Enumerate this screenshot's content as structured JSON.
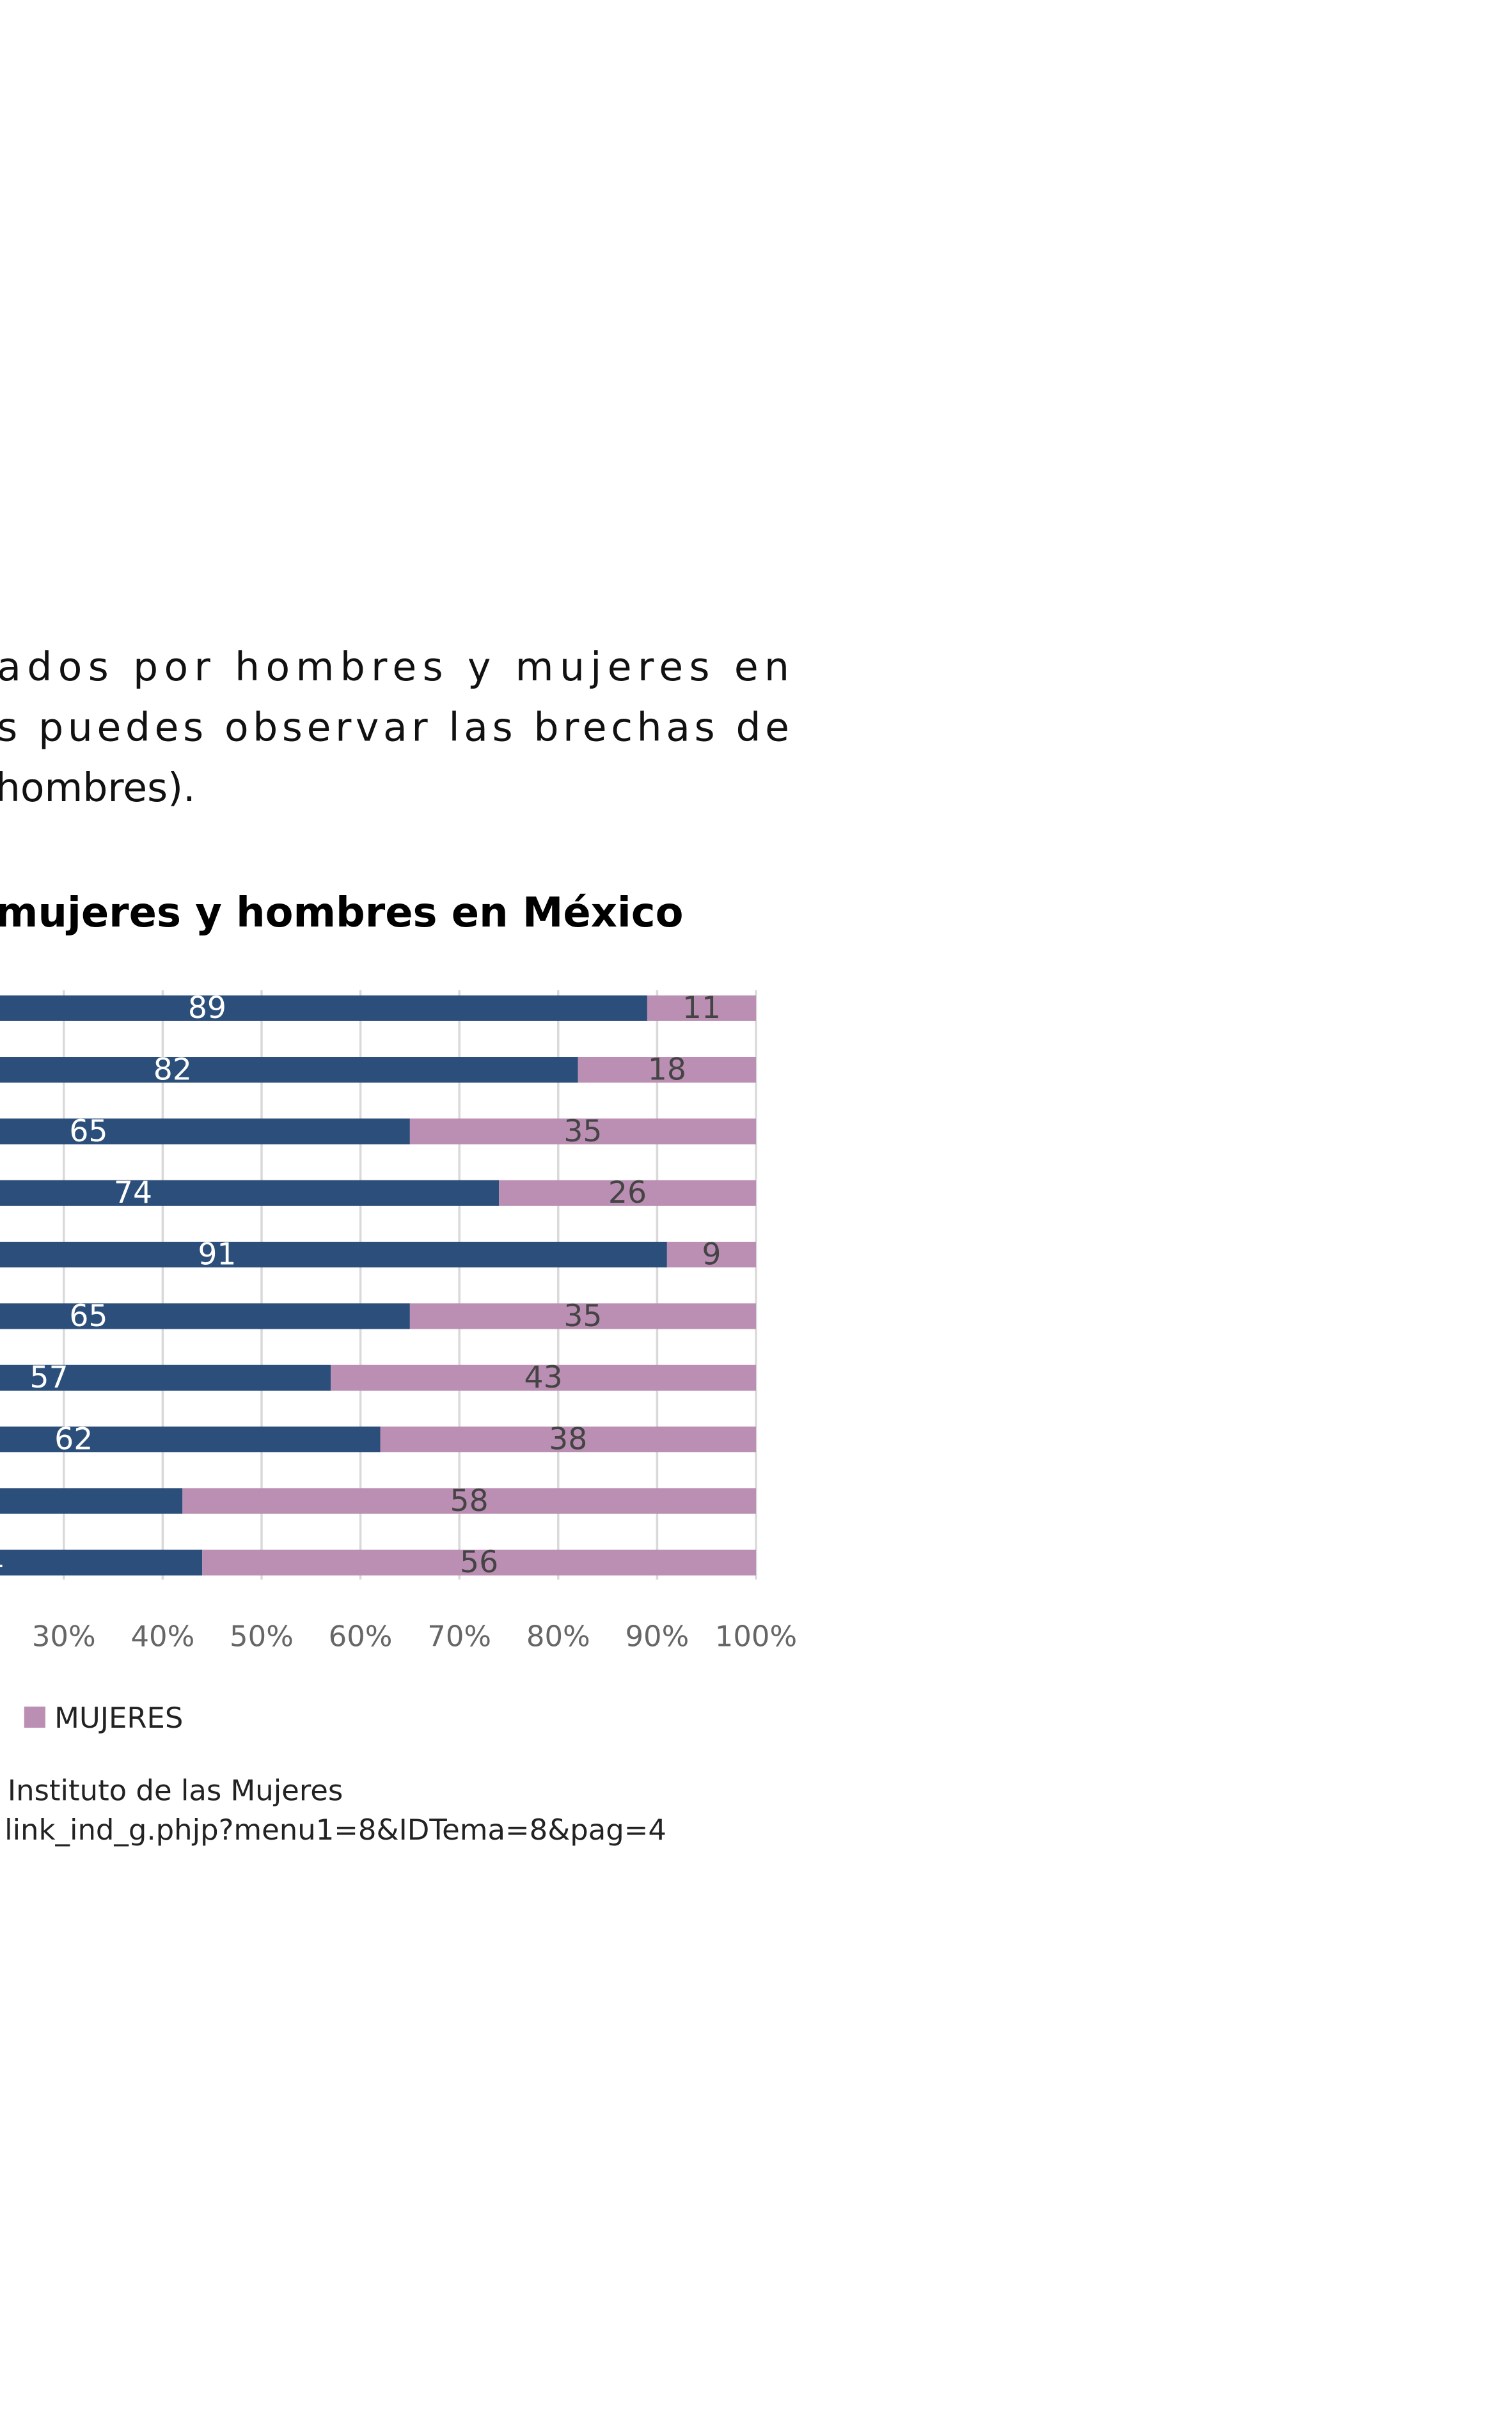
{
  "paragraph": {
    "lines": [
      "ados por hombres y mujeres en",
      "s puedes observar las brechas de",
      "hombres)."
    ]
  },
  "chart_data": {
    "type": "bar",
    "orientation": "horizontal",
    "stacked": true,
    "title": "mujeres y hombres en México",
    "series": [
      {
        "color": "#2b4f7a",
        "values": [
          89,
          82,
          65,
          74,
          91,
          65,
          57,
          62,
          42,
          44
        ]
      },
      {
        "name": "MUJERES",
        "color": "#bb8fb3",
        "values": [
          11,
          18,
          35,
          26,
          9,
          35,
          43,
          38,
          58,
          56
        ]
      }
    ],
    "xlim": [
      0,
      100
    ],
    "xticks": [
      {
        "value": 30,
        "label": "30%"
      },
      {
        "value": 40,
        "label": "40%"
      },
      {
        "value": 50,
        "label": "50%"
      },
      {
        "value": 60,
        "label": "60%"
      },
      {
        "value": 70,
        "label": "70%"
      },
      {
        "value": 80,
        "label": "80%"
      },
      {
        "value": 90,
        "label": "90%"
      },
      {
        "value": 100,
        "label": "100%"
      }
    ],
    "grid": true
  },
  "source": {
    "lines": [
      "Instituto de las Mujeres",
      "link_ind_g.phjp?menu1=8&IDTema=8&pag=4"
    ]
  }
}
